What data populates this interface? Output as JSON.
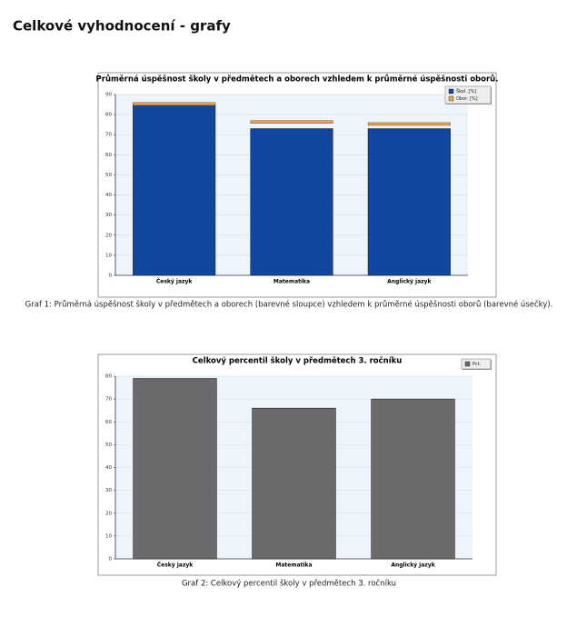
{
  "heading": "Celkové vyhodnocení - grafy",
  "chart_data": [
    {
      "type": "bar",
      "title": "Průměrná úspěšnost školy v předmětech a oborech vzhledem k průměrné úspěšnosti oborů.",
      "caption": "Graf 1: Průměrná úspěšnost školy v předmětech a oborech (barevné sloupce) vzhledem k průměrné úspěšnosti oborů (barevné úsečky).",
      "categories": [
        "Český jazyk",
        "Matematika",
        "Anglický jazyk"
      ],
      "series": [
        {
          "name": "Škol. [%]",
          "color": "#0f47a0",
          "values": [
            85,
            73,
            73
          ]
        },
        {
          "name": "Obor. [%]",
          "color": "#e8a35a",
          "kind": "marker",
          "values": [
            86,
            77,
            76
          ]
        }
      ],
      "ylim": [
        0,
        90
      ],
      "yticks": [
        0,
        10,
        20,
        30,
        40,
        50,
        60,
        70,
        80,
        90
      ],
      "grid": true,
      "legend": "top-right"
    },
    {
      "type": "bar",
      "title": "Celkový percentil školy v předmětech 3. ročníku",
      "caption": "Graf 2: Celkový percentil školy v předmětech 3. ročníku",
      "categories": [
        "Český jazyk",
        "Matematika",
        "Anglický jazyk"
      ],
      "series": [
        {
          "name": "Pct.",
          "color": "#6b6b6e",
          "values": [
            79,
            66,
            70
          ]
        }
      ],
      "ylim": [
        0,
        80
      ],
      "yticks": [
        0,
        10,
        20,
        30,
        40,
        50,
        60,
        70,
        80
      ],
      "grid": true,
      "legend": "top-right"
    }
  ]
}
